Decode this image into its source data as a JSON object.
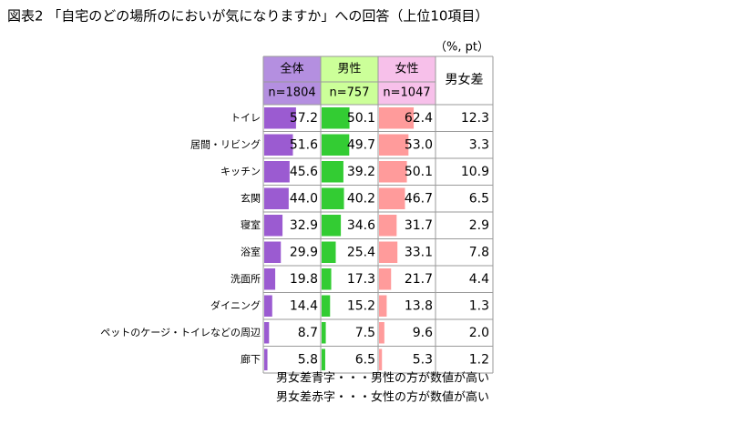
{
  "chart_data": {
    "type": "table_bar",
    "title": "図表2 「自宅のどの場所のにおいが気になりますか」への回答（上位10項目）",
    "unit": "（%, pt）",
    "categories": [
      "トイレ",
      "居間・リビング",
      "キッチン",
      "玄関",
      "寝室",
      "浴室",
      "洗面所",
      "ダイニング",
      "ペットのケージ・トイレなどの周辺",
      "廊下"
    ],
    "xlim": [
      0,
      100
    ],
    "series": [
      {
        "name": "全体",
        "sample": "n=1804",
        "header_color": "#b48fe0",
        "color": "#9b5bd1",
        "values": [
          57.2,
          51.6,
          45.6,
          44.0,
          32.9,
          29.9,
          19.8,
          14.4,
          8.7,
          5.8
        ],
        "value_labels": [
          "57.2",
          "51.6",
          "45.6",
          "44.0",
          "32.9",
          "29.9",
          "19.8",
          "14.4",
          "8.7",
          "5.8"
        ]
      },
      {
        "name": "男性",
        "sample": "n=757",
        "header_color": "#ccff99",
        "color": "#33cc33",
        "values": [
          50.1,
          49.7,
          39.2,
          40.2,
          34.6,
          25.4,
          17.3,
          15.2,
          7.5,
          6.5
        ],
        "value_labels": [
          "50.1",
          "49.7",
          "39.2",
          "40.2",
          "34.6",
          "25.4",
          "17.3",
          "15.2",
          "7.5",
          "6.5"
        ]
      },
      {
        "name": "女性",
        "sample": "n=1047",
        "header_color": "#f7c0ea",
        "color": "#ff9b9b",
        "values": [
          62.4,
          53.0,
          50.1,
          46.7,
          31.7,
          33.1,
          21.7,
          13.8,
          9.6,
          5.3
        ],
        "value_labels": [
          "62.4",
          "53.0",
          "50.1",
          "46.7",
          "31.7",
          "33.1",
          "21.7",
          "13.8",
          "9.6",
          "5.3"
        ]
      }
    ],
    "diff": {
      "name": "男女差",
      "values": [
        12.3,
        3.3,
        10.9,
        6.5,
        2.9,
        7.8,
        4.4,
        1.3,
        2.0,
        1.2
      ],
      "value_labels": [
        "12.3",
        "3.3",
        "10.9",
        "6.5",
        "2.9",
        "7.8",
        "4.4",
        "1.3",
        "2.0",
        "1.2"
      ],
      "male_color": "#1a75bc",
      "female_color": "#e60012"
    },
    "notes": [
      {
        "text": "男女差青字・・・男性の方が数値が高い",
        "color": "#1a75bc"
      },
      {
        "text": "男女差赤字・・・女性の方が数値が高い",
        "color": "#e60012"
      }
    ]
  }
}
